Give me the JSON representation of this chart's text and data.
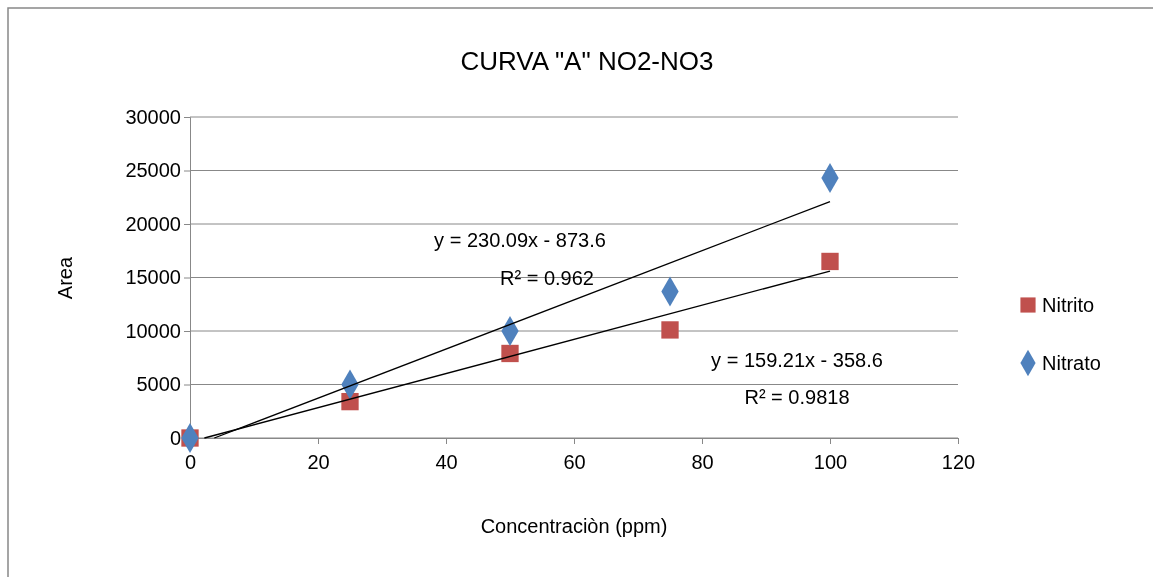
{
  "chart_data": {
    "type": "scatter",
    "title": "CURVA \"A\" NO2-NO3",
    "xlabel": "Concentraciòn (ppm)",
    "ylabel": "Area",
    "x": [
      0,
      25,
      50,
      75,
      100
    ],
    "series": [
      {
        "name": "Nitrito",
        "color": "#c0504d",
        "marker": "square",
        "values": [
          0,
          3400,
          7900,
          10100,
          16500
        ]
      },
      {
        "name": "Nitrato",
        "color": "#4f81bd",
        "marker": "diamond",
        "values": [
          0,
          5000,
          10000,
          13700,
          24300
        ]
      },
      {
        "type": "line",
        "color": "#000000",
        "x": [
          3.8,
          100
        ],
        "values": [
          0,
          22100
        ]
      },
      {
        "type": "line",
        "color": "#000000",
        "x": [
          2.25,
          100
        ],
        "values": [
          0,
          15600
        ]
      }
    ],
    "xlim": [
      0,
      120
    ],
    "xticks": [
      0,
      20,
      40,
      60,
      80,
      100,
      120
    ],
    "ylim": [
      0,
      30000
    ],
    "yticks": [
      0,
      5000,
      10000,
      15000,
      20000,
      25000,
      30000
    ],
    "grid": "y",
    "legend": "right",
    "line_style": "solid",
    "annotations": [
      "y = 230.09x - 873.6",
      "R² = 0.962",
      "y = 159.21x - 358.6",
      "R² = 0.9818"
    ]
  }
}
